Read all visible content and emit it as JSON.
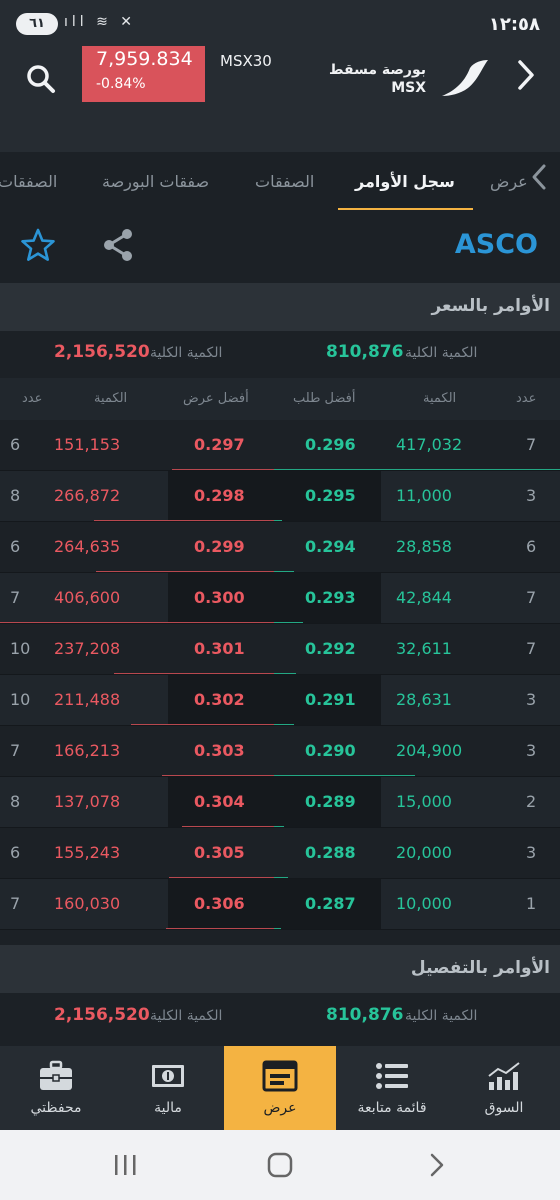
{
  "status_bar": {
    "battery": "٦١",
    "icons": "ıll ≋ ✕",
    "time": "١٢:٥٨"
  },
  "header": {
    "index_value": "7,959.834",
    "index_change": "-0.84%",
    "index_name": "MSX30",
    "exchange_name": "بورصة مسقط",
    "exchange_code": "MSX",
    "colors": {
      "negative": "#d9535b"
    }
  },
  "tabs": [
    {
      "label": "الصفقات",
      "active": false
    },
    {
      "label": "صفقات البورصة",
      "active": false
    },
    {
      "label": "الصفقات",
      "active": false
    },
    {
      "label": "سجل الأوامر",
      "active": true
    },
    {
      "label": "عرض",
      "active": false
    }
  ],
  "symbol": "ASCO",
  "order_by_price": {
    "title": "الأوامر بالسعر",
    "bid_total_label": "الكمية الكلية",
    "bid_total": "810,876",
    "ask_total_label": "الكمية الكلية",
    "ask_total": "2,156,520",
    "columns": {
      "ask_count": "عدد",
      "ask_qty": "الكمية",
      "best_ask": "أفضل عرض",
      "best_bid": "أفضل طلب",
      "bid_qty": "الكمية",
      "bid_count": "عدد"
    },
    "rows": [
      {
        "ask_count": "6",
        "ask_qty": "151,153",
        "ask": "0.297",
        "bid": "0.296",
        "bid_qty": "417,032",
        "bid_count": "7"
      },
      {
        "ask_count": "8",
        "ask_qty": "266,872",
        "ask": "0.298",
        "bid": "0.295",
        "bid_qty": "11,000",
        "bid_count": "3"
      },
      {
        "ask_count": "6",
        "ask_qty": "264,635",
        "ask": "0.299",
        "bid": "0.294",
        "bid_qty": "28,858",
        "bid_count": "6"
      },
      {
        "ask_count": "7",
        "ask_qty": "406,600",
        "ask": "0.300",
        "bid": "0.293",
        "bid_qty": "42,844",
        "bid_count": "7"
      },
      {
        "ask_count": "10",
        "ask_qty": "237,208",
        "ask": "0.301",
        "bid": "0.292",
        "bid_qty": "32,611",
        "bid_count": "7"
      },
      {
        "ask_count": "10",
        "ask_qty": "211,488",
        "ask": "0.302",
        "bid": "0.291",
        "bid_qty": "28,631",
        "bid_count": "3"
      },
      {
        "ask_count": "7",
        "ask_qty": "166,213",
        "ask": "0.303",
        "bid": "0.290",
        "bid_qty": "204,900",
        "bid_count": "3"
      },
      {
        "ask_count": "8",
        "ask_qty": "137,078",
        "ask": "0.304",
        "bid": "0.289",
        "bid_qty": "15,000",
        "bid_count": "2"
      },
      {
        "ask_count": "6",
        "ask_qty": "155,243",
        "ask": "0.305",
        "bid": "0.288",
        "bid_qty": "20,000",
        "bid_count": "3"
      },
      {
        "ask_count": "7",
        "ask_qty": "160,030",
        "ask": "0.306",
        "bid": "0.287",
        "bid_qty": "10,000",
        "bid_count": "1"
      }
    ]
  },
  "order_detail": {
    "title": "الأوامر بالتفصيل",
    "bid_total_label": "الكمية الكلية",
    "bid_total": "810,876",
    "ask_total_label": "الكمية الكلية",
    "ask_total": "2,156,520"
  },
  "bottom_nav": [
    {
      "label": "محفظتي",
      "icon": "briefcase-icon",
      "active": false
    },
    {
      "label": "مالية",
      "icon": "banknote-icon",
      "active": false
    },
    {
      "label": "عرض",
      "icon": "order-window-icon",
      "active": true
    },
    {
      "label": "قائمة متابعة",
      "icon": "list-icon",
      "active": false
    },
    {
      "label": "السوق",
      "icon": "market-chart-icon",
      "active": false
    }
  ],
  "colors": {
    "accent": "#f4b342",
    "bid": "#27c49a",
    "ask": "#ea5961",
    "symbol": "#2b95d6"
  }
}
